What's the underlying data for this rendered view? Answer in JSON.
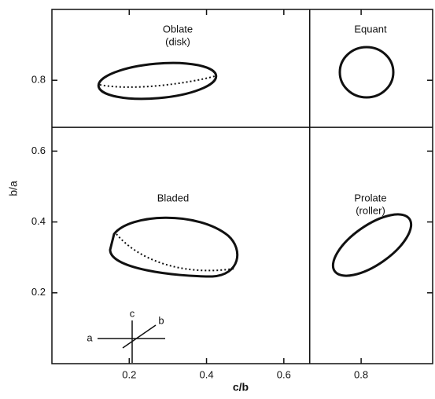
{
  "chart_data": {
    "type": "zingg",
    "xlabel": "c/b",
    "ylabel": "b/a",
    "xlim": [
      0,
      0.985
    ],
    "ylim": [
      0,
      1.0
    ],
    "xticks": [
      0.2,
      0.4,
      0.6,
      0.8
    ],
    "yticks": [
      0.2,
      0.4,
      0.6,
      0.8
    ],
    "boundary": 0.667,
    "regions": [
      {
        "lines": [
          "Oblate",
          "(disk)"
        ]
      },
      {
        "lines": [
          "Equant"
        ]
      },
      {
        "lines": [
          "Bladed"
        ]
      },
      {
        "lines": [
          "Prolate",
          "(roller)"
        ]
      }
    ],
    "axis_labels": [
      "a",
      "b",
      "c"
    ]
  }
}
